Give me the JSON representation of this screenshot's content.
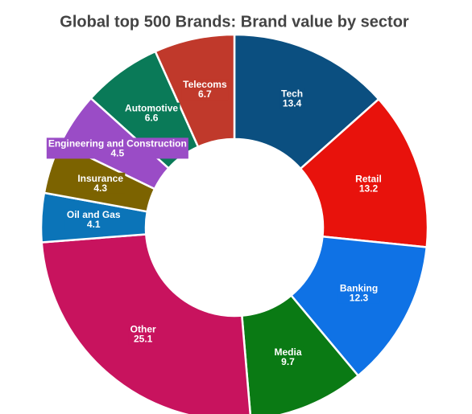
{
  "chart_data": {
    "type": "donut",
    "title": "Global top 500 Brands: Brand value by sector",
    "categories": [
      "Tech",
      "Retail",
      "Banking",
      "Media",
      "Other",
      "Oil and Gas",
      "Insurance",
      "Engineering and Construction",
      "Automotive",
      "Telecoms"
    ],
    "values": [
      13.4,
      13.2,
      12.3,
      9.7,
      25.1,
      4.1,
      4.3,
      4.5,
      6.6,
      6.7
    ],
    "colors": [
      "#0b4f80",
      "#e8120c",
      "#0f72e5",
      "#0a7a14",
      "#c8135e",
      "#0b74b8",
      "#7c6300",
      "#9a4cc6",
      "#0a7a58",
      "#c0392b"
    ]
  }
}
